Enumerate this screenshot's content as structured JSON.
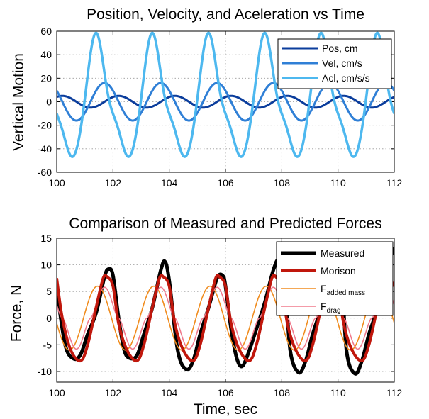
{
  "chart_data": [
    {
      "type": "line",
      "title": "Position, Velocity, and Aceleration vs Time",
      "xlabel": "",
      "ylabel": "Vertical Motion",
      "xlim": [
        100,
        112
      ],
      "ylim": [
        -60,
        60
      ],
      "xticks": [
        100,
        102,
        104,
        106,
        108,
        110,
        112
      ],
      "yticks": [
        -60,
        -40,
        -20,
        0,
        20,
        40,
        60
      ],
      "grid": true,
      "legend_position": "top-right",
      "period": 2.0,
      "series": [
        {
          "name": "Pos, cm",
          "color": "#0b3d9c",
          "amplitude": 5.0,
          "phase_peak_x": 100.2,
          "shape": "sine",
          "width": 3
        },
        {
          "name": "Vel, cm/s",
          "color": "#2f7fd6",
          "amplitude": 16.0,
          "phase_peak_x": 101.7,
          "shape": "sine",
          "width": 3
        },
        {
          "name": "Acl, cm/s/s",
          "color": "#4db8ef",
          "amplitude": 53.0,
          "phase_peak_x": 101.45,
          "shape": "skewed",
          "width": 3.5
        }
      ]
    },
    {
      "type": "line",
      "title": "Comparison of Measured and Predicted Forces",
      "xlabel": "Time, sec",
      "ylabel": "Force, N",
      "xlim": [
        100,
        112
      ],
      "ylim": [
        -12,
        15
      ],
      "xticks": [
        100,
        102,
        104,
        106,
        108,
        110,
        112
      ],
      "yticks": [
        -10,
        -5,
        0,
        5,
        10,
        15
      ],
      "grid": true,
      "legend_position": "top-right",
      "series": [
        {
          "name": "Measured",
          "color": "#000000",
          "width": 5,
          "x": [
            100.0,
            100.3,
            100.6,
            100.85,
            101.1,
            101.4,
            101.7,
            101.85,
            102.0,
            102.2,
            102.4,
            102.6,
            102.85,
            103.1,
            103.4,
            103.7,
            103.85,
            104.0,
            104.3,
            104.6,
            104.85,
            105.1,
            105.4,
            105.7,
            105.9,
            106.0,
            106.2,
            106.4,
            106.6,
            106.85,
            107.1,
            107.4,
            107.7,
            107.9,
            108.1,
            108.3,
            108.6,
            108.85,
            109.1,
            109.4,
            109.7,
            109.9,
            110.1,
            110.3,
            110.6,
            110.85,
            111.1,
            111.4,
            111.7,
            111.9,
            112.0
          ],
          "y": [
            5.5,
            -5.0,
            -7.6,
            -6.8,
            -3.0,
            1.0,
            7.8,
            9.2,
            8.0,
            0.0,
            -6.0,
            -7.5,
            -7.0,
            -3.0,
            2.0,
            9.0,
            10.6,
            7.0,
            -6.0,
            -9.6,
            -8.0,
            -3.0,
            2.0,
            7.5,
            8.0,
            6.0,
            -2.0,
            -7.5,
            -9.0,
            -6.0,
            -2.0,
            3.0,
            9.0,
            11.0,
            8.0,
            -6.0,
            -10.2,
            -8.0,
            -3.0,
            2.0,
            9.0,
            12.2,
            10.5,
            -6.0,
            -10.4,
            -8.0,
            -3.0,
            2.0,
            10.0,
            13.0,
            12.0
          ]
        },
        {
          "name": "Morison",
          "color": "#c0170c",
          "width": 4,
          "x": [
            100.0,
            100.2,
            100.5,
            100.85,
            101.1,
            101.4,
            101.65,
            101.8,
            102.0,
            102.2,
            102.5,
            102.85,
            103.1,
            103.4,
            103.65,
            103.8,
            104.0,
            104.2,
            104.5,
            104.85,
            105.1,
            105.4,
            105.65,
            105.8,
            106.0,
            106.2,
            106.5,
            106.85,
            107.1,
            107.4,
            107.65,
            107.8,
            108.0,
            108.2,
            108.5,
            108.85,
            109.1,
            109.4,
            109.65,
            109.8,
            110.0,
            110.2,
            110.5,
            110.85,
            111.1,
            111.4,
            111.65,
            111.8,
            112.0
          ],
          "y": [
            7.5,
            0.0,
            -6.0,
            -8.0,
            -5.0,
            2.0,
            7.5,
            7.7,
            6.0,
            -1.0,
            -6.0,
            -8.0,
            -5.0,
            2.0,
            7.5,
            7.7,
            6.0,
            -1.0,
            -6.0,
            -8.0,
            -5.0,
            2.0,
            7.5,
            7.7,
            6.0,
            -1.0,
            -6.0,
            -8.0,
            -5.0,
            2.0,
            7.5,
            7.7,
            6.0,
            -1.0,
            -6.0,
            -8.0,
            -5.0,
            2.0,
            7.5,
            7.7,
            6.0,
            -1.0,
            -6.0,
            -8.0,
            -5.0,
            2.0,
            7.5,
            7.7,
            6.0
          ]
        },
        {
          "name_main": "F",
          "name_sub": "added mass",
          "color": "#f08c1e",
          "width": 1.6,
          "amplitude": 6.0,
          "period": 2.0,
          "phase_peak_x": 101.45,
          "shape": "sine"
        },
        {
          "name_main": "F",
          "name_sub": "drag",
          "color": "#f07a8c",
          "width": 1.6,
          "amplitude": 5.8,
          "period": 2.0,
          "phase_peak_x": 101.7,
          "shape": "drag"
        }
      ]
    }
  ]
}
